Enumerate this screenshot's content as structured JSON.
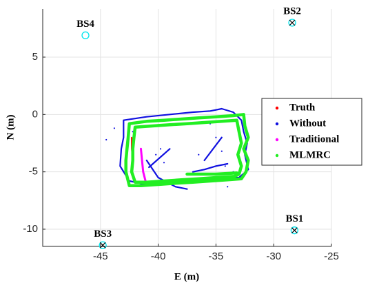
{
  "chart_data": {
    "type": "scatter",
    "xlabel": "E (m)",
    "ylabel": "N (m)",
    "xlim": [
      -50,
      -25
    ],
    "xticks": [
      -45,
      -40,
      -35,
      -30,
      -25
    ],
    "ylim": [
      -11.5,
      9.2
    ],
    "yticks": [
      -10,
      -5,
      0,
      5
    ],
    "grid": true,
    "legend": "right",
    "stations": [
      {
        "label": "BS1",
        "x": -28.2,
        "y": -10.1,
        "color": "#00e5ee",
        "cross": true
      },
      {
        "label": "BS2",
        "x": -28.4,
        "y": 8.0,
        "color": "#00e5ee",
        "cross": true
      },
      {
        "label": "BS3",
        "x": -44.8,
        "y": -11.4,
        "color": "#00e5ee",
        "cross": true
      },
      {
        "label": "BS4",
        "x": -46.3,
        "y": 6.9,
        "color": "#00e5ee",
        "cross": false
      }
    ],
    "series": [
      {
        "name": "Truth",
        "color": "#ff0000",
        "width": 2,
        "x": [
          -42.3,
          -42.3,
          -42.2
        ],
        "y": [
          -2,
          -3,
          -4
        ]
      },
      {
        "name": "Without",
        "color": "#1010e0",
        "width": 2.2,
        "x": [
          -43,
          -41,
          -39,
          -37,
          -35.5,
          -34.5,
          -33.5,
          -32.8,
          -32.6,
          -32.3,
          -32.5,
          -32.2,
          -33,
          -35,
          -37,
          -39,
          -41,
          -42.5,
          -43.3,
          -43.2,
          -43,
          -43,
          null,
          -41,
          -40,
          -38.5,
          -37.5,
          null,
          -37,
          -36,
          -35,
          -34,
          null,
          -40.8,
          -39,
          null,
          -34.5,
          -36,
          null,
          -44.5,
          null,
          -43.8,
          null,
          -42.2,
          null,
          -40.2,
          null,
          -39.5,
          null,
          -39.8,
          null,
          -35,
          null,
          -34.5,
          null,
          -34.2,
          null,
          -36.5,
          null,
          -35.5,
          null,
          -34,
          null,
          -33.5
        ],
        "y": [
          -0.5,
          -0.2,
          0,
          0.2,
          0.3,
          0.5,
          0.2,
          -0.5,
          -1.5,
          -2.5,
          -3.5,
          -4.8,
          -5.5,
          -5.6,
          -5.7,
          -5.9,
          -6.1,
          -5.8,
          -4.5,
          -3,
          -2,
          -0.5,
          null,
          -4,
          -5.5,
          -6.3,
          -6.5,
          null,
          -5,
          -4.8,
          -4.5,
          -4.3,
          null,
          -4.6,
          -3,
          null,
          -2,
          -4,
          null,
          -2.2,
          null,
          -1.2,
          null,
          -1.5,
          null,
          -3.5,
          null,
          -4.2,
          null,
          -3,
          null,
          -2,
          null,
          -3.2,
          null,
          -4.5,
          null,
          -3.5,
          null,
          -0.8,
          null,
          -6.3,
          null,
          -5
        ]
      },
      {
        "name": "Traditional",
        "color": "#ff00ff",
        "width": 3,
        "x": [
          -41.5,
          -41.4,
          -41.3,
          -41.1,
          -40.8
        ],
        "y": [
          -3,
          -4,
          -5,
          -5.8,
          -6.1
        ]
      },
      {
        "name": "MLMRC",
        "color": "#22ee22",
        "width": 4.5,
        "x": [
          -42.5,
          -41,
          -39.5,
          -38,
          -36.5,
          -35,
          -33.5,
          -32.6,
          -32.5,
          -32.2,
          -32.6,
          -32.2,
          -32.4,
          -32.8,
          -34,
          -35.5,
          -37,
          -38.5,
          -40,
          -41.5,
          -42.5,
          -42.8,
          -42.8,
          -42.7,
          -42.6,
          -42.5,
          null,
          -42,
          -40.5,
          -39,
          -37.5,
          -36,
          -34.5,
          -33.2,
          -33,
          -32.8,
          -33.1,
          -32.8,
          -33,
          -33.4,
          -35,
          -36.5,
          -38,
          -39.5,
          -41,
          -42,
          -42.3,
          -42.2,
          -42.2,
          -42.1,
          -42,
          null,
          -37.5,
          -35,
          -33.2
        ],
        "y": [
          -0.8,
          -0.6,
          -0.5,
          -0.4,
          -0.3,
          -0.2,
          -0.1,
          0,
          -1,
          -2,
          -3,
          -4,
          -5,
          -5.6,
          -5.7,
          -5.8,
          -5.9,
          -6,
          -6.1,
          -6.2,
          -6.2,
          -5,
          -4,
          -3,
          -2,
          -0.8,
          null,
          -1.1,
          -1,
          -0.9,
          -0.8,
          -0.7,
          -0.6,
          -0.5,
          -1.5,
          -2.5,
          -3.5,
          -4.5,
          -5.2,
          -5.4,
          -5.5,
          -5.6,
          -5.7,
          -5.8,
          -5.9,
          -5.9,
          -5,
          -4,
          -3,
          -2,
          -1.1,
          null,
          -5.2,
          -5.2,
          -5.1
        ]
      }
    ]
  }
}
